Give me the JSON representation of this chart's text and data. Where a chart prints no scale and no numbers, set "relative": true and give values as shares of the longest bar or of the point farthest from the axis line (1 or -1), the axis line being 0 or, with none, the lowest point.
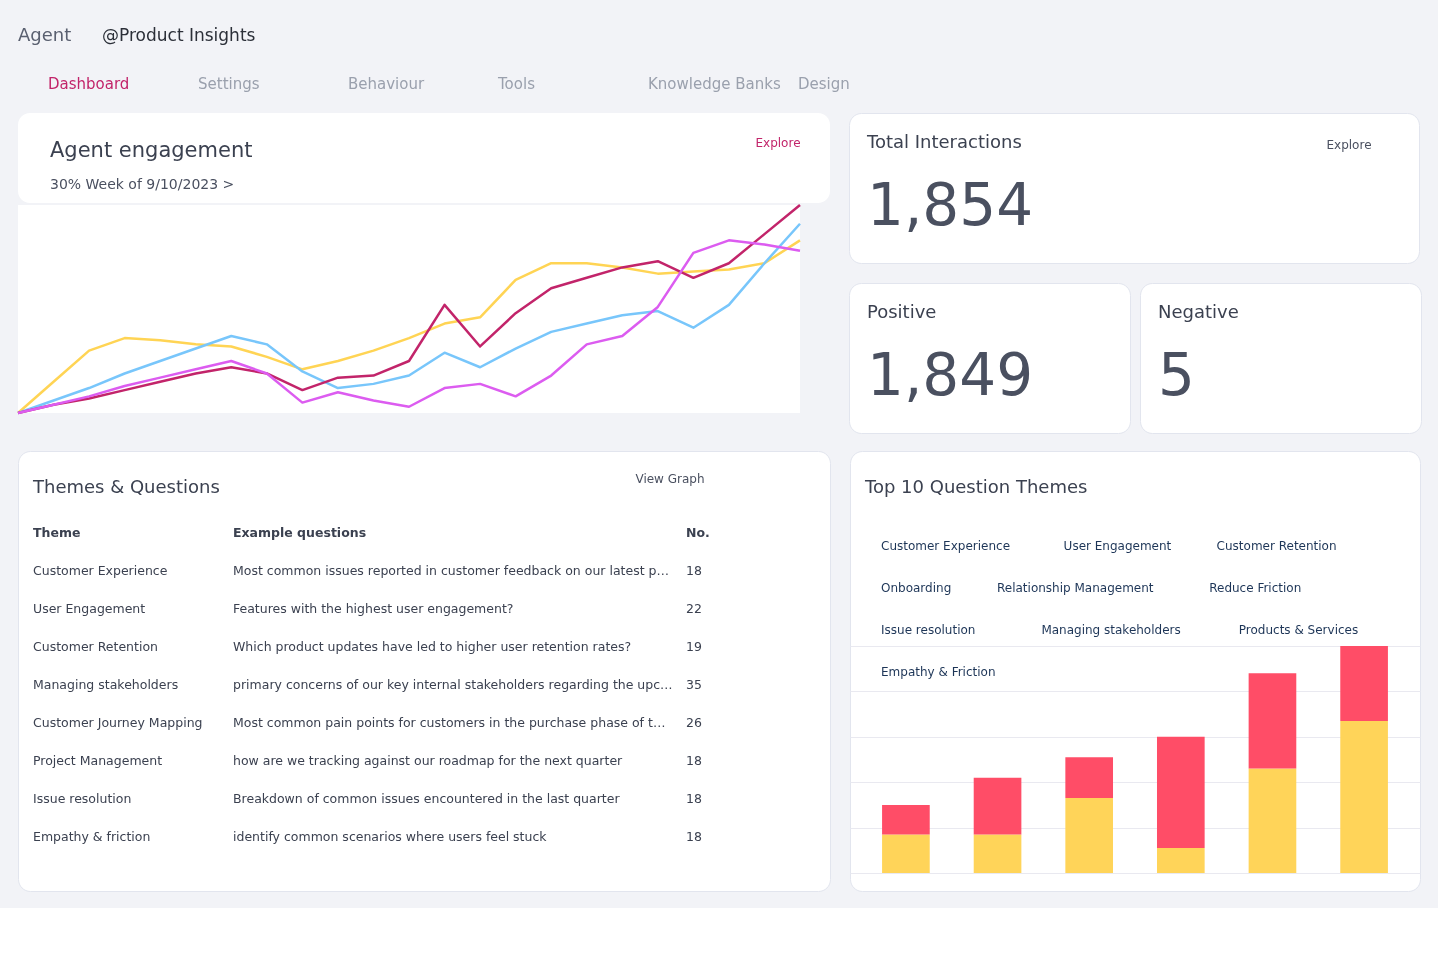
{
  "chart_data": [
    {
      "type": "other",
      "annotations": [
        "Agent",
        "@Product Insights",
        "Dashboard",
        "Settings",
        "Behaviour",
        "Tools",
        "Knowledge Banks",
        "Design"
      ]
    },
    {
      "type": "line",
      "title": "Agent engagement",
      "subtitle": "30% Week of 9/10/2023 >",
      "annotations": [
        "Explore"
      ],
      "relative": true,
      "tick_labels": false,
      "line_style": "solid",
      "categories": [
        null,
        null,
        null,
        null,
        null,
        null,
        null,
        null,
        null,
        null,
        null,
        null,
        null,
        null,
        null,
        null,
        null,
        null,
        null,
        null,
        null,
        null,
        null
      ],
      "series": [
        {
          "color": "#ffd454",
          "values": [
            0,
            0.15,
            0.3,
            0.36,
            0.35,
            0.33,
            0.32,
            0.27,
            0.21,
            0.25,
            0.3,
            0.36,
            0.43,
            0.46,
            0.64,
            0.72,
            0.72,
            0.7,
            0.67,
            0.68,
            0.69,
            0.72,
            0.83
          ]
        },
        {
          "color": "#78c6fb",
          "values": [
            0,
            0.06,
            0.12,
            0.19,
            0.25,
            0.31,
            0.37,
            0.33,
            0.2,
            0.12,
            0.14,
            0.18,
            0.29,
            0.22,
            0.31,
            0.39,
            0.43,
            0.47,
            0.49,
            0.41,
            0.52,
            0.72,
            0.91
          ]
        },
        {
          "color": "#c2246a",
          "values": [
            0,
            0.04,
            0.07,
            0.11,
            0.15,
            0.19,
            0.22,
            0.19,
            0.11,
            0.17,
            0.18,
            0.25,
            0.52,
            0.32,
            0.48,
            0.6,
            0.65,
            0.7,
            0.73,
            0.65,
            0.72,
            0.86,
            1
          ]
        },
        {
          "color": "#dc5cf0",
          "values": [
            0,
            0.04,
            0.08,
            0.13,
            0.17,
            0.21,
            0.25,
            0.19,
            0.05,
            0.1,
            0.06,
            0.03,
            0.12,
            0.14,
            0.08,
            0.18,
            0.33,
            0.37,
            0.51,
            0.77,
            0.83,
            0.81,
            0.78
          ]
        }
      ]
    },
    {
      "type": "other",
      "title": "Total Interactions",
      "annotations": [
        "1,854",
        "Explore"
      ]
    },
    {
      "type": "other",
      "title": "Positive",
      "annotations": [
        "1,849"
      ]
    },
    {
      "type": "other",
      "title": "Negative",
      "annotations": [
        "5"
      ]
    },
    {
      "type": "other",
      "title": "Themes & Questions",
      "annotations": [
        "View Graph",
        "Theme",
        "Example questions",
        "No.",
        "Customer Experience",
        "Most common issues reported in customer feedback on our latest p…",
        "18",
        "User Engagement",
        "Features with the highest user engagement?",
        "22",
        "Customer Retention",
        "Which product updates have led to higher user retention rates?",
        "19",
        "Managing stakeholders",
        "primary concerns of our key internal stakeholders regarding the upc…",
        "35",
        "Customer Journey Mapping",
        "Most common pain points for customers in the purchase phase of t…",
        "26",
        "Project Management",
        "how are we tracking against our roadmap for the next quarter",
        "18",
        "Issue resolution",
        "Breakdown of common issues encountered in the last quarter",
        "18",
        "Empathy & friction",
        "identify common scenarios where users feel stuck",
        "18"
      ]
    },
    {
      "type": "bar",
      "title": "Top 10 Question Themes",
      "stacked": true,
      "relative": true,
      "grid": true,
      "annotations": [
        "Customer Experience",
        "User Engagement",
        "Customer Retention",
        "Onboarding",
        "Relationship Management",
        "Reduce Friction",
        "Issue resolution",
        "Managing stakeholders",
        "Products & Services",
        "Empathy & Friction"
      ],
      "categories": [
        null,
        null,
        null,
        null,
        null,
        null
      ],
      "series": [
        {
          "color": "#ffd459",
          "values": [
            0.17,
            0.17,
            0.33,
            0.11,
            0.46,
            0.67
          ]
        },
        {
          "color": "#ff4d67",
          "values": [
            0.13,
            0.25,
            0.18,
            0.49,
            0.42,
            0.33
          ]
        }
      ]
    }
  ]
}
